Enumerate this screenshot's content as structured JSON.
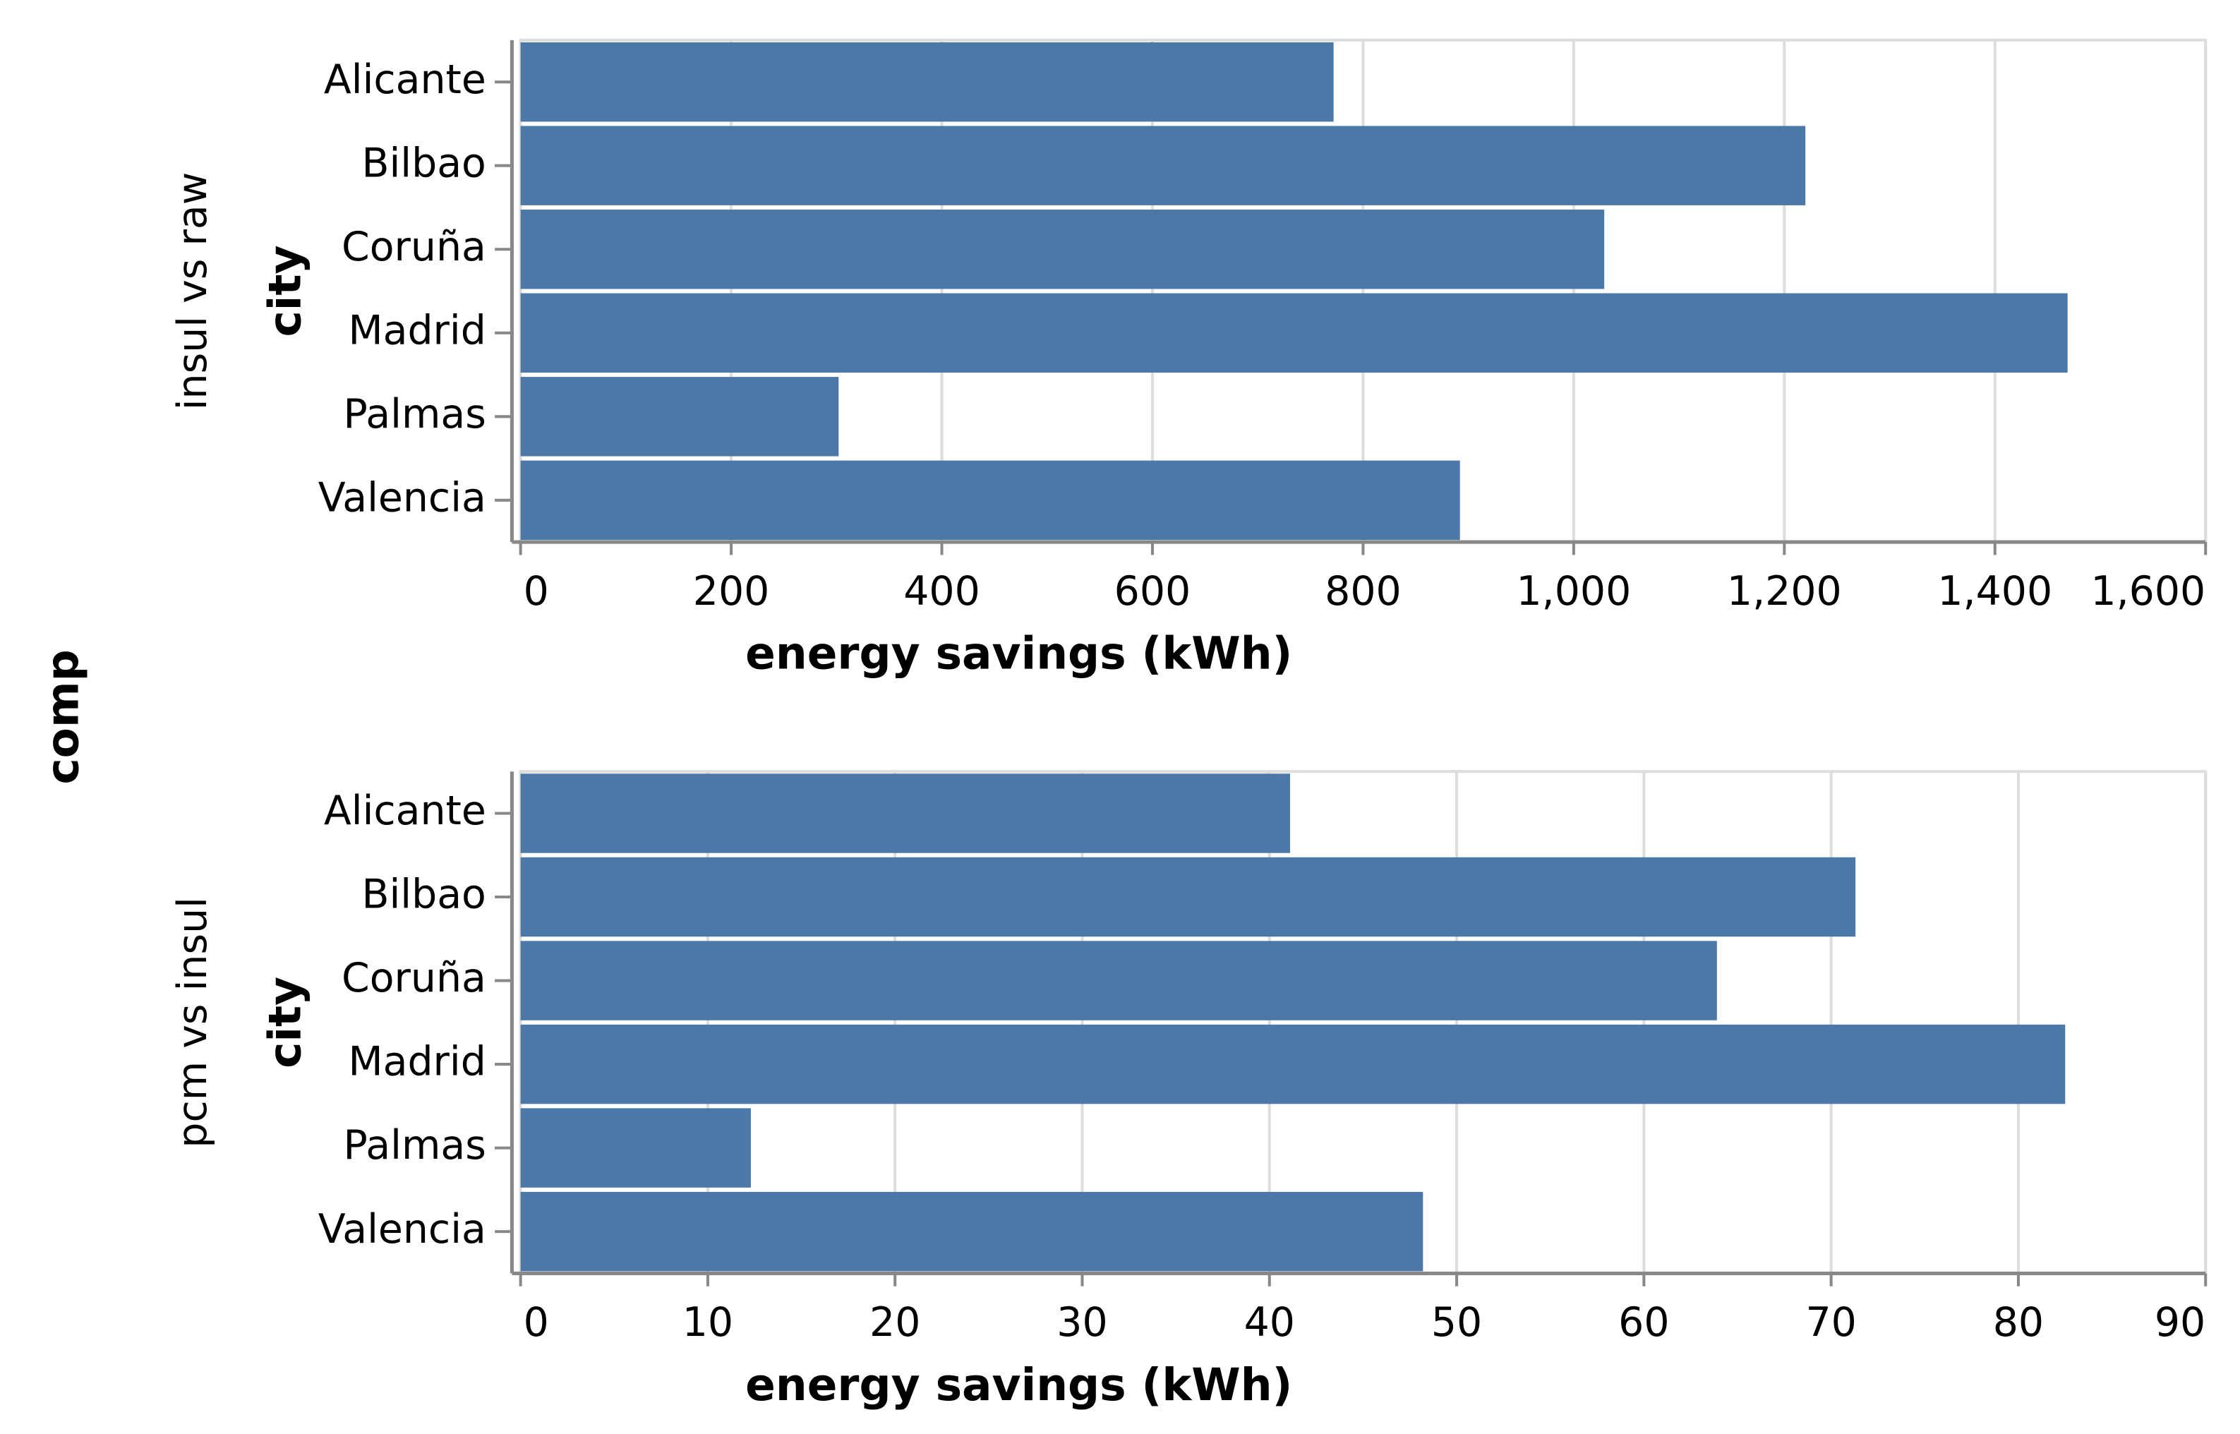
{
  "facet_title": "comp",
  "chart_data": [
    {
      "type": "bar",
      "orientation": "horizontal",
      "row_label": "insul vs raw",
      "y_title": "city",
      "x_title": "energy savings (kWh)",
      "categories": [
        "Alicante",
        "Bilbao",
        "Coruña",
        "Madrid",
        "Palmas",
        "Valencia"
      ],
      "values": [
        772,
        1220,
        1029,
        1469,
        302,
        892
      ],
      "color": "#4c78a8",
      "xlim": [
        0,
        1600
      ],
      "xticks": [
        0,
        200,
        400,
        600,
        800,
        {
          "value": 1000,
          "label": "1,000"
        },
        {
          "value": 1200,
          "label": "1,200"
        },
        {
          "value": 1400,
          "label": "1,400"
        },
        {
          "value": 1600,
          "label": "1,600"
        }
      ],
      "grid": true
    },
    {
      "type": "bar",
      "orientation": "horizontal",
      "row_label": "pcm vs insul",
      "y_title": "city",
      "x_title": "energy savings (kWh)",
      "categories": [
        "Alicante",
        "Bilbao",
        "Coruña",
        "Madrid",
        "Palmas",
        "Valencia"
      ],
      "values": [
        41.1,
        71.3,
        63.9,
        82.5,
        12.3,
        48.2
      ],
      "color": "#4c78a8",
      "xlim": [
        0,
        90
      ],
      "xticks": [
        0,
        10,
        20,
        30,
        40,
        50,
        60,
        70,
        80,
        90
      ],
      "grid": true
    }
  ]
}
